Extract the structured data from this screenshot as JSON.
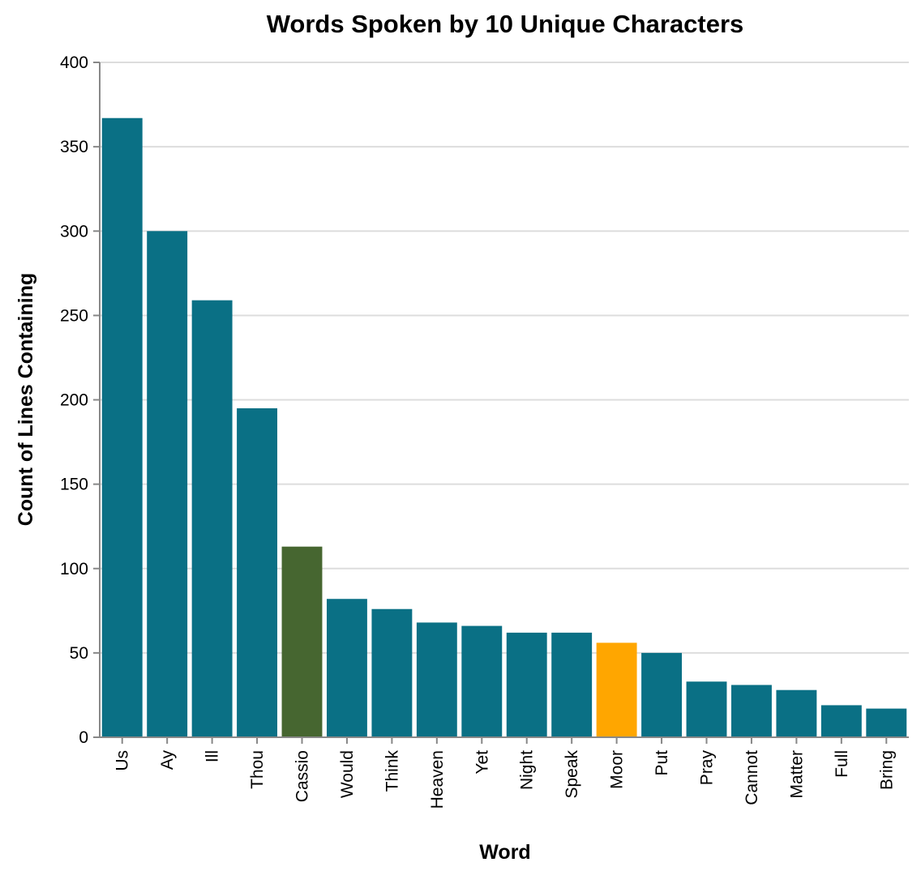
{
  "chart_data": {
    "type": "bar",
    "title": "Words Spoken by 10 Unique Characters",
    "xlabel": "Word",
    "ylabel": "Count of Lines Containing",
    "ylim": [
      0,
      400
    ],
    "yticks": [
      0,
      50,
      100,
      150,
      200,
      250,
      300,
      350,
      400
    ],
    "grid": true,
    "categories": [
      "Us",
      "Ay",
      "Ill",
      "Thou",
      "Cassio",
      "Would",
      "Think",
      "Heaven",
      "Yet",
      "Night",
      "Speak",
      "Moor",
      "Put",
      "Pray",
      "Cannot",
      "Matter",
      "Full",
      "Bring"
    ],
    "values": [
      367,
      300,
      259,
      195,
      113,
      82,
      76,
      68,
      66,
      62,
      62,
      56,
      50,
      33,
      31,
      28,
      19,
      17
    ],
    "colors": {
      "default": "#0a7085",
      "Cassio": "#466630",
      "Moor": "#ffa600"
    }
  }
}
